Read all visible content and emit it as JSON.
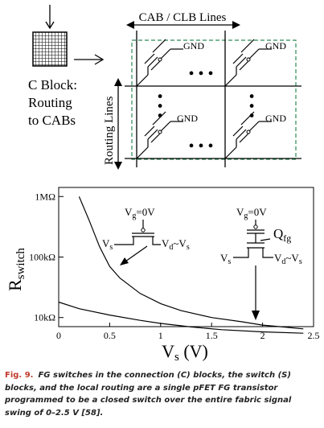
{
  "figure": {
    "c_block": {
      "title": "C Block:",
      "line2": "Routing",
      "line3": "to CABs"
    },
    "top_label": "CAB / CLB Lines",
    "side_label": "Routing Lines",
    "gnd_label": "GND",
    "ellipsis": "• • •",
    "schematic_left": {
      "vg": "V",
      "vg_sub": "g",
      "vg_rest": "=0V",
      "vs": "V",
      "vs_sub": "s",
      "vd": "V",
      "vd_sub": "d",
      "vd_rest": "~V",
      "vd_rest_sub": "s"
    },
    "schematic_right": {
      "qfg": "Q",
      "qfg_sub": "fg"
    }
  },
  "chart_data": {
    "type": "line",
    "xlabel": "V",
    "xlabel_sub": "s",
    "xlabel_unit": " (V)",
    "ylabel": "R",
    "ylabel_sub": "switch",
    "xlim": [
      0,
      2.5
    ],
    "ylim_log10": [
      3.85,
      6.15
    ],
    "x_ticks": [
      {
        "value": 0,
        "label": "0"
      },
      {
        "value": 0.5,
        "label": "0.5"
      },
      {
        "value": 1,
        "label": "1"
      },
      {
        "value": 1.5,
        "label": "1.5"
      },
      {
        "value": 2,
        "label": "2"
      },
      {
        "value": 2.5,
        "label": "2.5"
      }
    ],
    "y_ticks": [
      {
        "value": 10000,
        "label": "10kΩ"
      },
      {
        "value": 100000,
        "label": "100kΩ"
      },
      {
        "value": 1000000,
        "label": "1MΩ"
      }
    ],
    "series": [
      {
        "name": "",
        "x": [
          0.2,
          0.3,
          0.4,
          0.5,
          0.6,
          0.8,
          1.0,
          1.2,
          1.5,
          1.8,
          2.0,
          2.2,
          2.4
        ],
        "y": [
          1000000,
          400000,
          150000,
          70000,
          45000,
          25000,
          17000,
          13000,
          10000,
          8500,
          7500,
          7000,
          6500
        ]
      },
      {
        "name": "",
        "x": [
          0.0,
          0.2,
          0.5,
          0.8,
          1.0,
          1.3,
          1.6,
          2.0,
          2.4
        ],
        "y": [
          18000,
          14000,
          11000,
          9000,
          8000,
          7000,
          6300,
          5800,
          5500
        ]
      }
    ]
  },
  "caption": {
    "label": "Fig. 9.",
    "text": "FG switches in the connection (C) blocks, the switch (S) blocks, and the local routing are a single pFET FG transistor programmed to be a closed switch over the entire fabric signal swing of 0–2.5 V [58]."
  }
}
